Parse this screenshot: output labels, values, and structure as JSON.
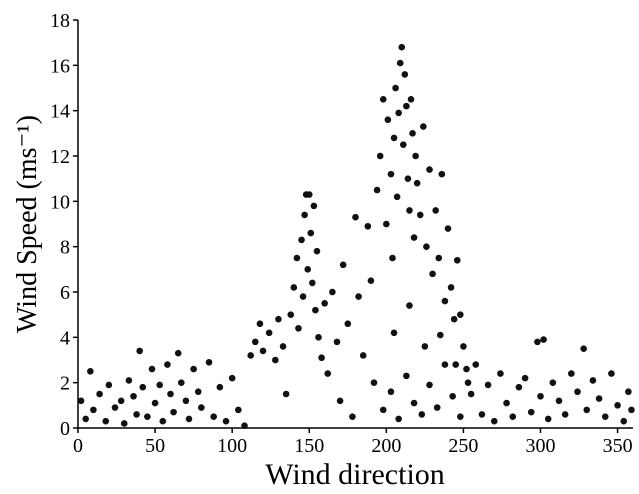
{
  "chart_data": {
    "type": "scatter",
    "xlabel": "Wind direction",
    "ylabel": "Wind Speed (ms⁻¹)",
    "color": "#111111",
    "xlim": [
      0,
      360
    ],
    "ylim": [
      0,
      18
    ],
    "xticks": [
      0,
      50,
      100,
      150,
      200,
      250,
      300,
      350
    ],
    "yticks": [
      0,
      2,
      4,
      6,
      8,
      10,
      12,
      14,
      16,
      18
    ],
    "series": [
      {
        "x": [
          2,
          5,
          8,
          10,
          14,
          18,
          20,
          24,
          28,
          30,
          33,
          36,
          38,
          40,
          42,
          45,
          48,
          50,
          53,
          55,
          58,
          60,
          62,
          65,
          67,
          70,
          72,
          75,
          78,
          80,
          85,
          88,
          92,
          96,
          100,
          104,
          108,
          255,
          258,
          262,
          266,
          270,
          274,
          278,
          282,
          286,
          290,
          294,
          298,
          300,
          302,
          305,
          308,
          312,
          316,
          320,
          324,
          328,
          330,
          334,
          338,
          342,
          346,
          350,
          354,
          357,
          359,
          112,
          115,
          118,
          120,
          124,
          128,
          130,
          133,
          135,
          138,
          140,
          142,
          143,
          145,
          146,
          147,
          148,
          149,
          150,
          151,
          152,
          153,
          154,
          155,
          156,
          158,
          160,
          162,
          165,
          168,
          170,
          172,
          175,
          178,
          180,
          182,
          185,
          188,
          190,
          192,
          194,
          196,
          198,
          200,
          201,
          203,
          204,
          205,
          206,
          207,
          208,
          209,
          210,
          211,
          212,
          213,
          214,
          215,
          216,
          217,
          218,
          219,
          220,
          222,
          224,
          226,
          228,
          230,
          232,
          234,
          236,
          238,
          240,
          242,
          244,
          246,
          248,
          250,
          252,
          198,
          203,
          208,
          213,
          218,
          223,
          228,
          233,
          238,
          243,
          248,
          253,
          205,
          215,
          225,
          235,
          245
        ],
        "y": [
          1.2,
          0.4,
          2.5,
          0.8,
          1.5,
          0.3,
          1.9,
          0.9,
          1.2,
          0.2,
          2.1,
          1.4,
          0.6,
          3.4,
          1.8,
          0.5,
          2.6,
          1.1,
          1.9,
          0.3,
          2.8,
          1.5,
          0.7,
          3.3,
          2.0,
          1.2,
          0.4,
          2.6,
          1.6,
          0.9,
          2.9,
          0.5,
          1.8,
          0.3,
          2.2,
          0.8,
          0.1,
          1.5,
          2.8,
          0.6,
          1.9,
          0.3,
          2.4,
          1.1,
          0.5,
          1.8,
          2.2,
          0.7,
          3.8,
          1.4,
          3.9,
          0.4,
          2.0,
          1.2,
          0.6,
          2.4,
          1.6,
          3.5,
          0.8,
          2.1,
          1.3,
          0.5,
          2.4,
          1.0,
          0.3,
          1.6,
          0.8,
          3.2,
          3.8,
          4.6,
          3.4,
          4.2,
          3.0,
          4.8,
          3.6,
          1.5,
          5.0,
          6.2,
          7.5,
          4.4,
          8.3,
          5.8,
          9.4,
          10.3,
          7.0,
          10.3,
          8.6,
          6.4,
          9.8,
          5.2,
          7.8,
          4.0,
          3.1,
          5.5,
          2.4,
          6.0,
          3.8,
          1.2,
          7.2,
          4.6,
          0.5,
          9.3,
          5.8,
          3.2,
          8.9,
          6.5,
          2.0,
          10.5,
          12.0,
          14.5,
          9.0,
          13.6,
          11.2,
          7.5,
          12.8,
          15.0,
          10.2,
          13.9,
          16.1,
          16.8,
          12.5,
          15.6,
          14.2,
          11.0,
          9.6,
          14.5,
          13.0,
          8.4,
          12.0,
          10.8,
          9.4,
          13.3,
          8.0,
          11.4,
          6.8,
          9.6,
          7.5,
          11.2,
          5.6,
          8.8,
          6.2,
          4.8,
          7.4,
          5.0,
          3.6,
          2.6,
          0.8,
          1.6,
          0.4,
          2.3,
          1.1,
          0.6,
          1.9,
          0.9,
          2.8,
          1.4,
          0.5,
          2.0,
          4.2,
          5.4,
          3.6,
          4.1,
          2.8
        ]
      }
    ]
  }
}
